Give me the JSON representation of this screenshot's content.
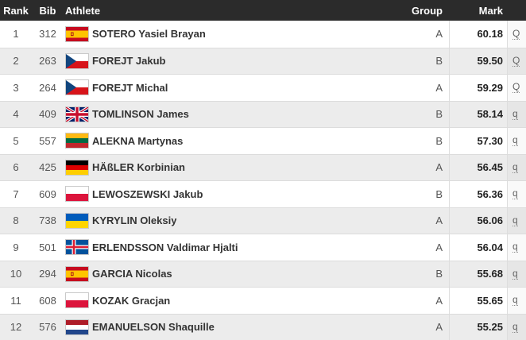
{
  "table": {
    "columns": {
      "rank": "Rank",
      "bib": "Bib",
      "athlete": "Athlete",
      "group": "Group",
      "mark": "Mark",
      "qual": ""
    },
    "rows": [
      {
        "rank": "1",
        "bib": "312",
        "flag": "esp",
        "name": "SOTERO Yasiel Brayan",
        "group": "A",
        "mark": "60.18",
        "qual": "Q"
      },
      {
        "rank": "2",
        "bib": "263",
        "flag": "cze",
        "name": "FOREJT Jakub",
        "group": "B",
        "mark": "59.50",
        "qual": "Q"
      },
      {
        "rank": "3",
        "bib": "264",
        "flag": "cze",
        "name": "FOREJT Michal",
        "group": "A",
        "mark": "59.29",
        "qual": "Q"
      },
      {
        "rank": "4",
        "bib": "409",
        "flag": "gbr",
        "name": "TOMLINSON James",
        "group": "B",
        "mark": "58.14",
        "qual": "q"
      },
      {
        "rank": "5",
        "bib": "557",
        "flag": "ltu",
        "name": "ALEKNA Martynas",
        "group": "B",
        "mark": "57.30",
        "qual": "q"
      },
      {
        "rank": "6",
        "bib": "425",
        "flag": "ger",
        "name": "HÄßLER Korbinian",
        "group": "A",
        "mark": "56.45",
        "qual": "q"
      },
      {
        "rank": "7",
        "bib": "609",
        "flag": "pol",
        "name": "LEWOSZEWSKI Jakub",
        "group": "B",
        "mark": "56.36",
        "qual": "q"
      },
      {
        "rank": "8",
        "bib": "738",
        "flag": "ukr",
        "name": "KYRYLIN Oleksiy",
        "group": "A",
        "mark": "56.06",
        "qual": "q"
      },
      {
        "rank": "9",
        "bib": "501",
        "flag": "isl",
        "name": "ERLENDSSON Valdimar Hjalti",
        "group": "A",
        "mark": "56.04",
        "qual": "q"
      },
      {
        "rank": "10",
        "bib": "294",
        "flag": "esp",
        "name": "GARCIA Nicolas",
        "group": "B",
        "mark": "55.68",
        "qual": "q"
      },
      {
        "rank": "11",
        "bib": "608",
        "flag": "pol",
        "name": "KOZAK Gracjan",
        "group": "A",
        "mark": "55.65",
        "qual": "q"
      },
      {
        "rank": "12",
        "bib": "576",
        "flag": "ned",
        "name": "EMANUELSON Shaquille",
        "group": "A",
        "mark": "55.25",
        "qual": "q"
      }
    ]
  },
  "colors": {
    "header_bg": "#2b2b2b",
    "header_text": "#ffffff",
    "row_bg": "#ffffff",
    "row_alt_bg": "#ececec",
    "row_border": "#dcdcdc",
    "col_separator": "#dddddd",
    "qual_text": "#666666"
  }
}
